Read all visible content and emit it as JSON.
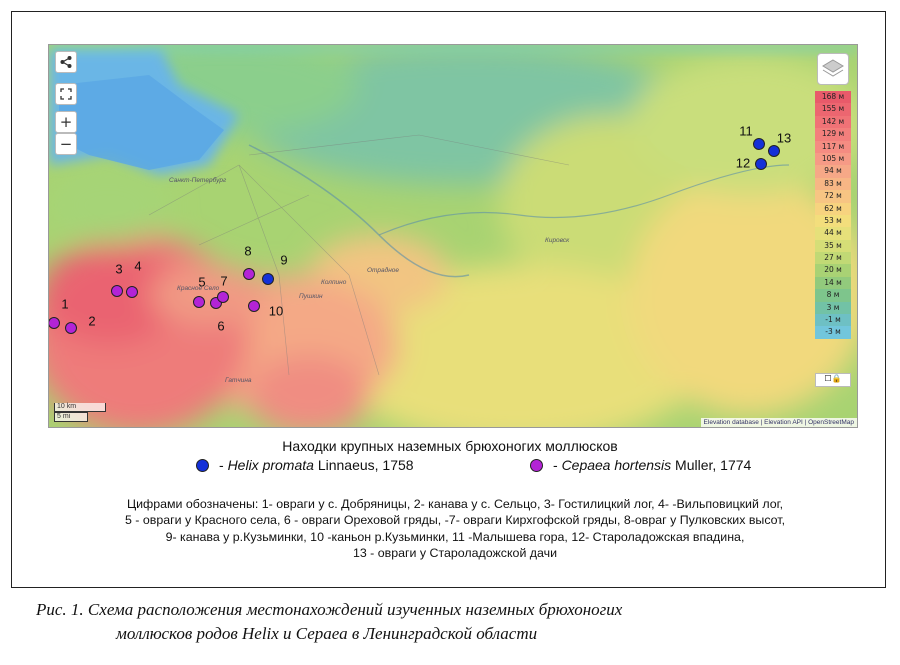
{
  "map": {
    "controls": {
      "share_icon": "share-icon",
      "fullscreen_icon": "fullscreen-icon",
      "zoom_in": "+",
      "zoom_out": "−",
      "layers_icon": "layers-icon"
    },
    "elevation_scale": [
      "168 м",
      "155 м",
      "142 м",
      "129 м",
      "117 м",
      "105 м",
      "94 м",
      "83 м",
      "72 м",
      "62 м",
      "53 м",
      "44 м",
      "35 м",
      "27 м",
      "20 м",
      "14 м",
      "8 м",
      "3 м",
      "-1 м",
      "-3 м"
    ],
    "elevation_colors": [
      "#e85a6a",
      "#ec6670",
      "#f07276",
      "#f37f7c",
      "#f58c82",
      "#f69a86",
      "#f6a887",
      "#f7b685",
      "#f7c583",
      "#f7d37f",
      "#f3de7c",
      "#e6e07a",
      "#d5de77",
      "#c1d975",
      "#a9d274",
      "#92ca7c",
      "#7ec58c",
      "#72c2a6",
      "#6ec0c4",
      "#72c6dc"
    ],
    "scale_labels": [
      "10 km",
      "5 mi"
    ],
    "attribution": "Elevation database | Elevation API | OpenStreetMap",
    "city_labels": [
      "Санкт-Петербург",
      "Пушкин",
      "Колпино",
      "Гатчина",
      "Красное Село",
      "Кировск",
      "Отрадное"
    ],
    "points": [
      {
        "num": "1",
        "type": "cepaea"
      },
      {
        "num": "2",
        "type": "cepaea"
      },
      {
        "num": "3",
        "type": "cepaea"
      },
      {
        "num": "4",
        "type": "cepaea"
      },
      {
        "num": "5",
        "type": "cepaea"
      },
      {
        "num": "6",
        "type": "cepaea"
      },
      {
        "num": "7",
        "type": "cepaea"
      },
      {
        "num": "8",
        "type": "cepaea"
      },
      {
        "num": "9",
        "type": "helix"
      },
      {
        "num": "10",
        "type": "cepaea"
      },
      {
        "num": "11",
        "type": "helix"
      },
      {
        "num": "12",
        "type": "helix"
      },
      {
        "num": "13",
        "type": "helix"
      }
    ],
    "colors": {
      "helix": "#1430d8",
      "cepaea": "#b324d6"
    }
  },
  "legend": {
    "title": "Находки крупных наземных брюхоногих моллюсков",
    "helix_species": "Helix promata",
    "helix_author": "Linnaeus, 1758",
    "cepaea_species": "Сераеа hortensis",
    "cepaea_author": "Muller, 1774"
  },
  "notes": {
    "line1": "Цифрами обозначены: 1- овраги у с. Добряницы, 2- канава у с. Сельцо, 3- Гостилицкий лог, 4- -Вильповицкий лог,",
    "line2": "5 - овраги у Красного села, 6 - овраги Ореховой гряды, -7- овраги Кирхгофской гряды, 8-овраг у Пулковских высот,",
    "line3": "9- канава у р.Кузьминки, 10 -каньон р.Кузьминки, 11 -Малышева гора, 12- Староладожская впадина,",
    "line4": "13 - овраги у Староладожской дачи"
  },
  "caption": {
    "line1": "Рис. 1.  Схема расположения местонахождений изученных наземных брюхоногих",
    "line2": "моллюсков родов Helix и Сераеа в Ленинградской области"
  }
}
